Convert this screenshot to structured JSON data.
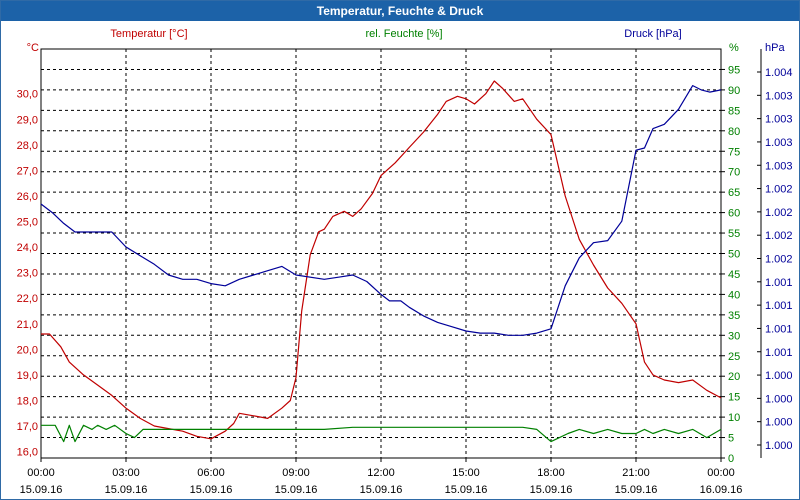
{
  "window": {
    "title": "Temperatur, Feuchte & Druck"
  },
  "colors": {
    "temperature": "#c00000",
    "humidity": "#008000",
    "pressure": "#000099",
    "titlebar": "#1c62a8",
    "grid": "#000000"
  },
  "chart_data": {
    "type": "line",
    "title": "Temperatur, Feuchte & Druck",
    "legend": [
      "Temperatur [°C]",
      "rel. Feuchte [%]",
      "Druck [hPa]"
    ],
    "x_ticks": [
      {
        "time": "00:00",
        "date": "15.09.16"
      },
      {
        "time": "03:00",
        "date": "15.09.16"
      },
      {
        "time": "06:00",
        "date": "15.09.16"
      },
      {
        "time": "09:00",
        "date": "15.09.16"
      },
      {
        "time": "12:00",
        "date": "15.09.16"
      },
      {
        "time": "15:00",
        "date": "15.09.16"
      },
      {
        "time": "18:00",
        "date": "15.09.16"
      },
      {
        "time": "21:00",
        "date": "15.09.16"
      },
      {
        "time": "00:00",
        "date": "16.09.16"
      }
    ],
    "x_range_hours": [
      0,
      24
    ],
    "axes": {
      "temperature": {
        "unit": "°C",
        "range": [
          15.75,
          31.75
        ],
        "ticks": [
          "30,0",
          "29,0",
          "28,0",
          "27,0",
          "26,0",
          "25,0",
          "24,0",
          "23,0",
          "22,0",
          "21,0",
          "20,0",
          "19,0",
          "18,0",
          "17,0",
          "16,0"
        ]
      },
      "humidity": {
        "unit": "%",
        "range": [
          0,
          100
        ],
        "ticks": [
          "95",
          "90",
          "85",
          "80",
          "75",
          "70",
          "65",
          "60",
          "55",
          "50",
          "45",
          "40",
          "35",
          "30",
          "25",
          "20",
          "15",
          "10",
          "5",
          "0"
        ]
      },
      "pressure": {
        "unit": "hPa",
        "range": [
          0,
          19
        ],
        "ticks": [
          "1.004",
          "1.003",
          "1.003",
          "1.003",
          "1.003",
          "1.002",
          "1.002",
          "1.002",
          "1.002",
          "1.001",
          "1.001",
          "1.001",
          "1.001",
          "1.000",
          "1.000",
          "1.000",
          "1.000"
        ]
      }
    },
    "series": [
      {
        "name": "Temperatur [°C]",
        "axis": "temperature",
        "x": [
          0,
          0.3,
          0.7,
          1,
          1.5,
          2,
          2.5,
          3,
          3.5,
          4,
          4.5,
          5,
          5.5,
          6,
          6.5,
          6.8,
          7,
          7.5,
          8,
          8.5,
          8.8,
          9,
          9.2,
          9.5,
          9.8,
          10,
          10.3,
          10.7,
          11,
          11.3,
          11.7,
          12,
          12.5,
          13,
          13.5,
          14,
          14.3,
          14.7,
          15,
          15.3,
          15.7,
          16,
          16.3,
          16.7,
          17,
          17.5,
          18,
          18.5,
          19,
          19.5,
          20,
          20.5,
          21,
          21.3,
          21.6,
          22,
          22.5,
          23,
          23.5,
          24
        ],
        "values": [
          20.6,
          20.6,
          20.1,
          19.5,
          19.0,
          18.6,
          18.2,
          17.7,
          17.3,
          17.0,
          16.9,
          16.8,
          16.6,
          16.5,
          16.8,
          17.1,
          17.5,
          17.4,
          17.3,
          17.7,
          18.0,
          18.9,
          21.5,
          23.7,
          24.6,
          24.7,
          25.2,
          25.4,
          25.2,
          25.5,
          26.1,
          26.8,
          27.3,
          27.9,
          28.5,
          29.2,
          29.7,
          29.9,
          29.8,
          29.6,
          30.0,
          30.5,
          30.2,
          29.7,
          29.8,
          29.0,
          28.4,
          26.0,
          24.3,
          23.3,
          22.4,
          21.8,
          21.0,
          19.5,
          19.0,
          18.8,
          18.7,
          18.8,
          18.4,
          18.1
        ]
      },
      {
        "name": "rel. Feuchte [%]",
        "axis": "humidity",
        "x": [
          0,
          0.5,
          0.8,
          1,
          1.2,
          1.5,
          1.8,
          2,
          2.3,
          2.6,
          3,
          3.3,
          3.6,
          4,
          5,
          6,
          7,
          8,
          9,
          10,
          11,
          12,
          13,
          14,
          15,
          16,
          17,
          17.5,
          18,
          18.3,
          18.6,
          19,
          19.5,
          20,
          20.5,
          21,
          21.3,
          21.6,
          22,
          22.5,
          23,
          23.5,
          24
        ],
        "values": [
          8,
          8,
          4,
          8,
          4,
          8,
          7,
          8,
          7,
          8,
          6,
          5,
          7,
          7,
          7,
          7,
          7,
          7,
          7,
          7,
          7.5,
          7.5,
          7.5,
          7.5,
          7.5,
          7.5,
          7.5,
          7,
          4,
          5,
          6,
          7,
          6,
          7,
          6,
          6,
          7,
          6,
          7,
          6,
          7,
          5,
          7
        ]
      },
      {
        "name": "Druck [hPa]",
        "axis": "pressure",
        "x": [
          0,
          0.4,
          0.8,
          1.2,
          2,
          2.5,
          3,
          3.5,
          4,
          4.5,
          5,
          5.5,
          6,
          6.5,
          7,
          7.5,
          8,
          8.5,
          9,
          10,
          10.5,
          11,
          11.5,
          12,
          12.3,
          12.7,
          13,
          13.5,
          14,
          14.5,
          15,
          15.5,
          16,
          16.5,
          17,
          17.5,
          18,
          18.5,
          19,
          19.5,
          20,
          20.5,
          21,
          21.3,
          21.6,
          22,
          22.5,
          23,
          23.3,
          23.6,
          24
        ],
        "values": [
          11.8,
          11.4,
          10.9,
          10.5,
          10.5,
          10.5,
          9.8,
          9.4,
          9.0,
          8.5,
          8.3,
          8.3,
          8.1,
          8.0,
          8.3,
          8.5,
          8.7,
          8.9,
          8.5,
          8.3,
          8.4,
          8.5,
          8.2,
          7.6,
          7.3,
          7.3,
          7.0,
          6.6,
          6.3,
          6.1,
          5.9,
          5.8,
          5.8,
          5.7,
          5.7,
          5.8,
          6.0,
          8.0,
          9.3,
          10.0,
          10.1,
          11.0,
          14.3,
          14.4,
          15.3,
          15.5,
          16.2,
          17.3,
          17.1,
          17.0,
          17.1
        ]
      }
    ]
  }
}
